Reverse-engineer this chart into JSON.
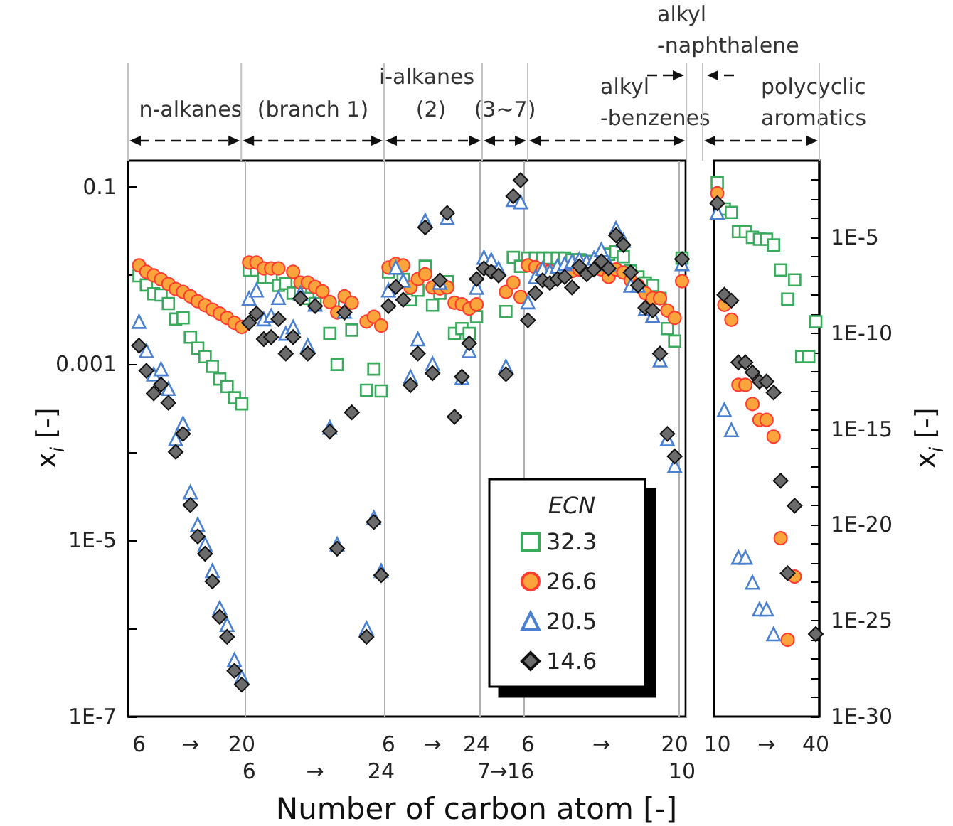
{
  "chart_data": [
    {
      "type": "scatter",
      "xlabel": "Number of carbon atom [-]",
      "ylabel": "x$_{i}$ [-]",
      "legend_title": "ECN",
      "legend": "bottom right",
      "grid": "x",
      "log": "y",
      "annotations": [
        "n-alkanes",
        "(branch 1)",
        "i-alkanes",
        "(2)",
        "(3~7)",
        "alkyl\n-benzenes",
        "alkyl\n-naphthalene"
      ],
      "categories": [
        "6",
        null,
        null,
        null,
        null,
        null,
        null,
        "→",
        null,
        null,
        null,
        null,
        null,
        null,
        "20",
        "6",
        null,
        null,
        null,
        null,
        null,
        null,
        null,
        null,
        "→",
        null,
        null,
        null,
        null,
        null,
        null,
        null,
        null,
        "24",
        "6",
        null,
        null,
        null,
        null,
        null,
        "→",
        null,
        null,
        null,
        null,
        null,
        "24",
        "7",
        null,
        "→",
        null,
        null,
        "16",
        "6",
        null,
        null,
        null,
        null,
        null,
        null,
        null,
        null,
        null,
        "→",
        null,
        null,
        null,
        null,
        null,
        null,
        null,
        null,
        null,
        "20",
        "10"
      ],
      "ylim": [
        1e-07,
        0.2
      ],
      "yticks": [
        {
          "value": 1e-07,
          "label": "1E-7"
        },
        {
          "value": 1e-06,
          "label": null
        },
        {
          "value": 1e-05,
          "label": "1E-5"
        },
        {
          "value": 0.0001,
          "label": null
        },
        0.001,
        {
          "value": 0.01,
          "label": null
        },
        0.1
      ],
      "series": [
        {
          "name": "32.3",
          "color": "#3aaa5c",
          "marker": "square",
          "values": [
            0.0099,
            0.0078,
            0.0062,
            0.006,
            0.0048,
            0.0032,
            0.0033,
            0.002,
            0.0015,
            0.0012,
            0.00093,
            0.00067,
            0.00055,
            0.00041,
            0.00035,
            0.0115,
            0.0115,
            0.0095,
            0.0095,
            0.0077,
            0.0081,
            0.0063,
            0.0063,
            0.0055,
            0.0048,
            null,
            0.0022,
            0.00098,
            0.0044,
            0.0024,
            null,
            0.0005,
            0.00087,
            0.00049,
            0.011,
            null,
            0.009,
            0.0053,
            0.0068,
            0.0127,
            0.0046,
            0.0063,
            0.0085,
            0.0022,
            0.0025,
            0.0022,
            0.0034,
            null,
            null,
            null,
            0.0039,
            0.016,
            0.0127,
            0.0157,
            0.0157,
            0.0157,
            0.0157,
            0.0157,
            0.0157,
            0.015,
            0.015,
            0.0144,
            null,
            null,
            0.0174,
            0.0185,
            0.0163,
            0.0112,
            0.0096,
            0.0082,
            0.0077,
            0.0055,
            0.0025,
            0.0018,
            0.0157
          ]
        },
        {
          "name": "26.6",
          "color": "#fca43c",
          "marker": "circle",
          "values": [
            0.013,
            0.011,
            0.01,
            0.009,
            0.008,
            0.007,
            0.0065,
            0.0058,
            0.0051,
            0.0046,
            0.0041,
            0.0037,
            0.0033,
            0.0029,
            0.0026,
            0.014,
            0.014,
            0.012,
            0.012,
            0.012,
            null,
            0.011,
            0.0083,
            0.0083,
            0.0074,
            0.0066,
            0.005,
            0.0038,
            0.0058,
            0.0049,
            null,
            0.003,
            0.0034,
            0.0027,
            0.0123,
            0.0135,
            0.013,
            0.0073,
            0.0091,
            0.0103,
            0.0073,
            0.0071,
            0.0073,
            0.0049,
            0.0047,
            0.0042,
            0.0047,
            null,
            null,
            null,
            0.0065,
            0.0083,
            0.0057,
            0.013,
            0.0124,
            0.0117,
            0.0112,
            null,
            null,
            0.0112,
            0.0117,
            null,
            null,
            0.0117,
            0.0096,
            0.0117,
            0.0108,
            0.0088,
            0.0077,
            0.0063,
            0.0055,
            0.0055,
            0.004,
            0.0033,
            0.0086
          ]
        },
        {
          "name": "20.5",
          "color": "#4a80d0",
          "marker": "triangle",
          "values": [
            0.003,
            0.0014,
            0.00076,
            0.00087,
            0.00052,
            0.00014,
            0.00021,
            3.5e-05,
            1.5e-05,
            9e-06,
            4.5e-06,
            1.7e-06,
            1.1e-06,
            4.4e-07,
            2.8e-07,
            0.0055,
            0.0068,
            0.0032,
            0.0035,
            0.0056,
            0.0022,
            0.0026,
            0.0063,
            0.0016,
            0.0047,
            null,
            0.00019,
            9e-06,
            0.0039,
            null,
            null,
            1e-06,
            1.8e-05,
            4.5e-06,
            0.0068,
            0.0123,
            0.0088,
            0.00071,
            0.0019,
            0.042,
            0.001,
            0.0083,
            0.045,
            null,
            0.00069,
            0.0014,
            0.0073,
            0.016,
            0.015,
            0.012,
            0.00093,
            0.072,
            0.068,
            0.005,
            0.0096,
            0.012,
            0.0112,
            0.0127,
            0.0135,
            0.0144,
            0.0153,
            0.0144,
            0.0157,
            0.0196,
            0.0135,
            0.034,
            0.025,
            0.0077,
            0.0077,
            0.0042,
            0.0035,
            0.0011,
            0.00014,
            7e-05,
            0.0135
          ]
        },
        {
          "name": "14.6",
          "color": "#6b6b6b",
          "marker": "diamond",
          "values": [
            0.0016,
            0.00083,
            0.00046,
            0.00058,
            0.00036,
            0.0001,
            0.00016,
            2.5e-05,
            1.1e-05,
            7e-06,
            3.4e-06,
            1.35e-06,
            8e-07,
            3.3e-07,
            2.3e-07,
            0.0029,
            0.0037,
            0.0019,
            0.002,
            0.0032,
            0.0013,
            0.002,
            0.0055,
            0.0013,
            0.0045,
            null,
            0.00017,
            8e-06,
            0.0038,
            0.00028,
            null,
            8e-07,
            1.6e-05,
            4e-06,
            0.0045,
            0.0074,
            0.0053,
            0.00057,
            0.0013,
            0.035,
            0.00078,
            0.0088,
            0.051,
            0.00025,
            0.00071,
            0.0017,
            0.0091,
            0.012,
            0.011,
            0.01,
            0.00076,
            0.079,
            0.12,
            0.0031,
            0.0063,
            0.0088,
            0.0082,
            0.0091,
            0.0096,
            0.0073,
            0.0127,
            0.0103,
            0.0117,
            0.0144,
            0.012,
            0.0285,
            0.0222,
            0.0108,
            0.0077,
            0.0043,
            0.004,
            0.0013,
            0.00016,
            8.9e-05,
            0.0153
          ]
        }
      ]
    },
    {
      "type": "scatter",
      "y2label": "x$_{i}$ [-]",
      "log": "y2",
      "annotations": [
        "polycyclic\naromatics"
      ],
      "categories": [
        "10",
        null,
        null,
        null,
        null,
        null,
        null,
        "→",
        null,
        null,
        null,
        null,
        null,
        null,
        "40"
      ],
      "y2lim": [
        1e-30,
        0.1
      ],
      "y2ticks": [
        {
          "value": 1e-30,
          "label": "1E-30"
        },
        {
          "value": 1e-29,
          "label": null
        },
        {
          "value": 1e-28,
          "label": null
        },
        {
          "value": 1e-27,
          "label": null
        },
        {
          "value": 1e-26,
          "label": null
        },
        {
          "value": 1e-25,
          "label": "1E-25"
        },
        {
          "value": 1e-24,
          "label": null
        },
        {
          "value": 1e-23,
          "label": null
        },
        {
          "value": 1e-22,
          "label": null
        },
        {
          "value": 1e-21,
          "label": null
        },
        {
          "value": 1e-20,
          "label": "1E-20"
        },
        {
          "value": 1e-19,
          "label": null
        },
        {
          "value": 1e-18,
          "label": null
        },
        {
          "value": 1e-17,
          "label": null
        },
        {
          "value": 1e-16,
          "label": null
        },
        {
          "value": 1e-15,
          "label": "1E-15"
        },
        {
          "value": 1e-14,
          "label": null
        },
        {
          "value": 1e-13,
          "label": null
        },
        {
          "value": 1e-12,
          "label": null
        },
        {
          "value": 1e-11,
          "label": null
        },
        {
          "value": 1e-10,
          "label": "1E-10"
        },
        {
          "value": 1e-09,
          "label": null
        },
        {
          "value": 1e-08,
          "label": null
        },
        {
          "value": 1e-07,
          "label": null
        },
        {
          "value": 1e-06,
          "label": null
        },
        {
          "value": 1e-05,
          "label": "1E-5"
        },
        {
          "value": 0.0001,
          "label": null
        },
        {
          "value": 0.001,
          "label": null
        },
        {
          "value": 0.01,
          "label": null
        }
      ],
      "series": [
        {
          "color": "#3aaa5c",
          "marker": "square",
          "axis": "y2",
          "values": [
            0.007,
            0.0003,
            0.0002,
            2e-05,
            2e-05,
            1e-05,
            8e-06,
            8e-06,
            4e-06,
            2e-07,
            6e-09,
            6e-08,
            6e-12,
            6e-12,
            4e-10
          ]
        },
        {
          "color": "#fca43c",
          "marker": "circle",
          "axis": "y2",
          "values": [
            0.002,
            3e-09,
            5e-10,
            2e-13,
            2e-13,
            2e-14,
            3e-15,
            3e-15,
            4e-16,
            2e-21,
            1e-26,
            2e-23,
            null,
            null,
            null
          ]
        },
        {
          "color": "#4a80d0",
          "marker": "triangle",
          "axis": "y2",
          "values": [
            0.0002,
            1e-14,
            9e-16,
            2e-22,
            2e-22,
            1e-23,
            4e-25,
            4e-25,
            2e-26,
            null,
            null,
            null,
            null,
            null,
            null
          ]
        },
        {
          "color": "#6b6b6b",
          "marker": "diamond",
          "axis": "y2",
          "values": [
            0.0006,
            1e-08,
            5e-09,
            3e-12,
            3e-12,
            9e-13,
            3e-13,
            3e-13,
            8e-14,
            2e-18,
            3e-23,
            1e-19,
            null,
            null,
            2e-26
          ]
        }
      ]
    }
  ]
}
